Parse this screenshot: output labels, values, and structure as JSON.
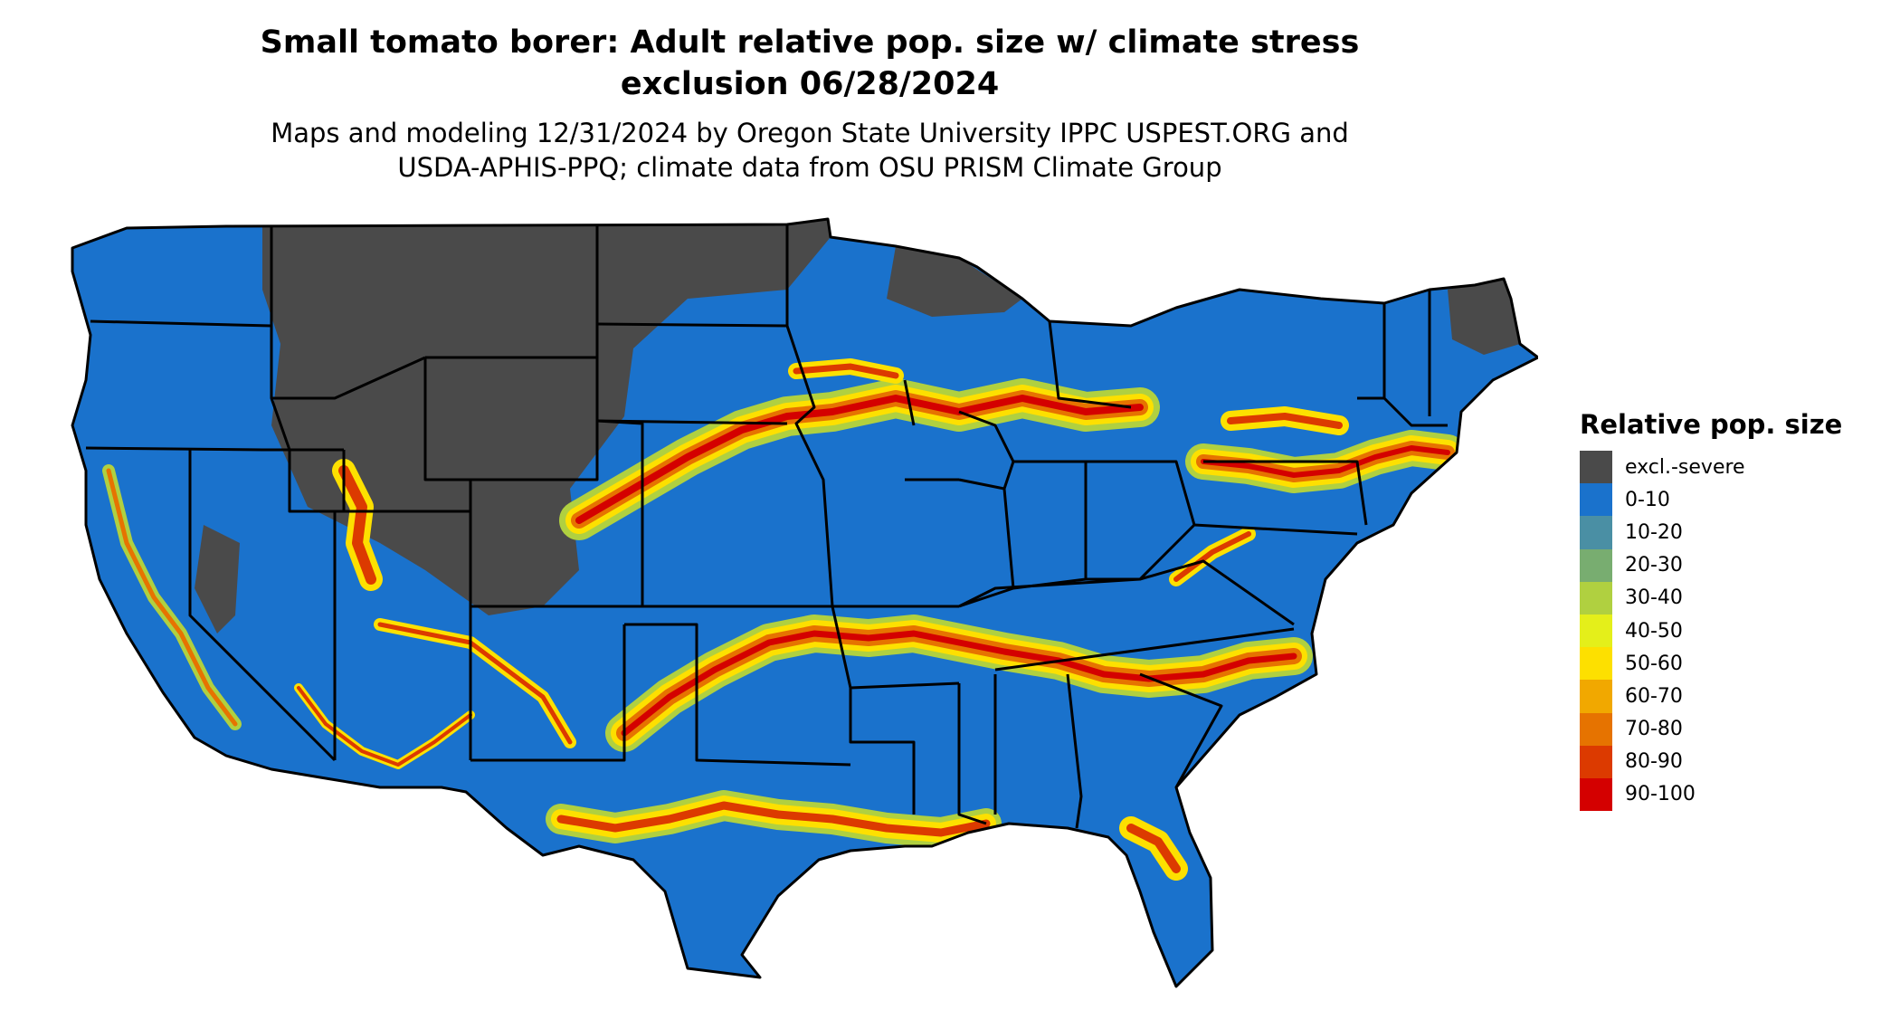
{
  "title_line1": "Small tomato borer: Adult relative pop. size w/ climate stress",
  "title_line2": "exclusion 06/28/2024",
  "subtitle_line1": "Maps and modeling 12/31/2024 by Oregon State University IPPC USPEST.ORG and",
  "subtitle_line2": "USDA-APHIS-PPQ; climate data from OSU PRISM Climate Group",
  "legend": {
    "title": "Relative pop. size",
    "items": [
      {
        "label": "excl.-severe",
        "color": "#4a4a4a"
      },
      {
        "label": "0-10",
        "color": "#1a72cc"
      },
      {
        "label": "10-20",
        "color": "#4a8fa4"
      },
      {
        "label": "20-30",
        "color": "#78ad70"
      },
      {
        "label": "30-40",
        "color": "#b0d040"
      },
      {
        "label": "40-50",
        "color": "#e4ef1a"
      },
      {
        "label": "50-60",
        "color": "#fde000"
      },
      {
        "label": "60-70",
        "color": "#f1a800"
      },
      {
        "label": "70-80",
        "color": "#e67300"
      },
      {
        "label": "80-90",
        "color": "#dc3a00"
      },
      {
        "label": "90-100",
        "color": "#d40000"
      }
    ]
  }
}
